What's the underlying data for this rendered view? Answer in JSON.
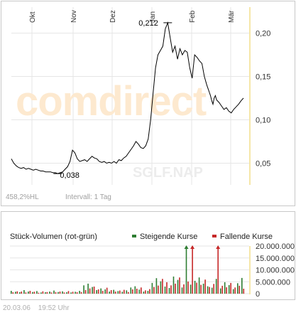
{
  "brand": "comdirect",
  "watermark": "SGLF.NAP",
  "price_info": {
    "range_label": "458,2%HL",
    "interval_label": "Intervall: 1 Tag"
  },
  "colors": {
    "price_line": "#000000",
    "grid": "#e6e6e6",
    "axis_accent": "#f5e6a8",
    "rising": "#2e7d32",
    "falling": "#c62828",
    "watermark_orange": "#fde9cf",
    "watermark_gray": "#ececec"
  },
  "chart_data": [
    {
      "type": "line",
      "x_ticks": [
        "Okt",
        "Nov",
        "Dez",
        "Jan",
        "Feb",
        "Mär"
      ],
      "y_ticks": [
        "0,05",
        "0,10",
        "0,15",
        "0,20"
      ],
      "ylim": [
        0.025,
        0.23
      ],
      "annotations": [
        {
          "label": "0,038",
          "value": 0.038
        },
        {
          "label": "0,212",
          "value": 0.212
        }
      ],
      "grid": true,
      "series": [
        {
          "x": [
            0,
            2,
            4,
            6,
            8,
            10,
            12,
            14,
            16,
            18,
            20,
            22,
            24,
            26,
            28,
            30,
            32,
            34,
            36,
            38,
            40,
            42,
            44,
            46,
            48,
            50,
            52,
            54,
            56,
            58,
            60,
            62,
            64,
            66,
            68,
            70,
            72,
            74,
            76,
            78,
            80,
            82,
            84,
            86,
            88,
            90,
            92,
            94,
            96,
            98,
            100,
            102,
            104,
            106,
            108,
            110,
            112,
            114,
            116,
            118,
            120,
            122,
            124,
            126,
            128,
            130,
            132,
            134,
            136,
            138,
            140,
            142,
            144,
            146,
            148,
            150,
            152,
            154,
            156,
            158,
            160,
            162,
            163,
            164,
            165,
            166,
            167,
            168,
            170,
            172,
            174,
            176,
            178,
            180,
            182,
            184,
            186,
            188,
            190
          ],
          "y": [
            0.055,
            0.05,
            0.047,
            0.045,
            0.044,
            0.045,
            0.043,
            0.044,
            0.043,
            0.042,
            0.043,
            0.042,
            0.041,
            0.041,
            0.04,
            0.04,
            0.04,
            0.039,
            0.039,
            0.038,
            0.039,
            0.04,
            0.043,
            0.046,
            0.052,
            0.065,
            0.062,
            0.055,
            0.052,
            0.053,
            0.054,
            0.052,
            0.055,
            0.058,
            0.056,
            0.055,
            0.052,
            0.051,
            0.052,
            0.05,
            0.051,
            0.05,
            0.052,
            0.05,
            0.054,
            0.053,
            0.056,
            0.058,
            0.062,
            0.066,
            0.07,
            0.075,
            0.072,
            0.068,
            0.067,
            0.07,
            0.078,
            0.1,
            0.13,
            0.16,
            0.175,
            0.18,
            0.185,
            0.205,
            0.212,
            0.195,
            0.178,
            0.185,
            0.17,
            0.182,
            0.175,
            0.18,
            0.178,
            0.16,
            0.148,
            0.175,
            0.172,
            0.168,
            0.165,
            0.15,
            0.14,
            0.132,
            0.128,
            0.122,
            0.118,
            0.125,
            0.128,
            0.123,
            0.12,
            0.116,
            0.112,
            0.114,
            0.11,
            0.108,
            0.112,
            0.115,
            0.118,
            0.122,
            0.125
          ]
        }
      ]
    },
    {
      "type": "bar",
      "title": "Stück-Volumen (rot-grün)",
      "y_ticks": [
        "0",
        "5.000.000",
        "10.000.000",
        "15.000.000",
        "20.000.000"
      ],
      "ylim": [
        0,
        20000000
      ],
      "legend": [
        {
          "label": "Steigende Kurse",
          "color": "#2e7d32"
        },
        {
          "label": "Fallende Kurse",
          "color": "#c62828"
        }
      ],
      "series": [
        {
          "name": "Steigende Kurse",
          "values": [
            1200000,
            800000,
            600000,
            1500000,
            900000,
            700000,
            1100000,
            500000,
            600000,
            900000,
            1300000,
            700000,
            1000000,
            600000,
            500000,
            800000,
            1200000,
            3500000,
            4200000,
            2800000,
            1500000,
            2200000,
            1800000,
            900000,
            1600000,
            1100000,
            800000,
            1400000,
            2600000,
            3100000,
            1700000,
            900000,
            1200000,
            4500000,
            6500000,
            5200000,
            3000000,
            2400000,
            7200000,
            5800000,
            2600000,
            20000000,
            3800000,
            5400000,
            6800000,
            4200000,
            3100000,
            2500000,
            6200000,
            2200000,
            4800000,
            3600000,
            1900000,
            4400000,
            6600000
          ]
        },
        {
          "name": "Fallende Kurse",
          "values": [
            600000,
            1000000,
            900000,
            500000,
            1200000,
            800000,
            400000,
            1000000,
            700000,
            500000,
            600000,
            900000,
            500000,
            1100000,
            800000,
            600000,
            700000,
            1500000,
            2200000,
            3000000,
            1800000,
            1200000,
            2500000,
            1500000,
            900000,
            1300000,
            1600000,
            700000,
            1800000,
            2100000,
            2600000,
            1400000,
            1900000,
            2800000,
            3400000,
            6200000,
            4800000,
            3500000,
            4200000,
            6800000,
            3900000,
            5100000,
            20000000,
            4600000,
            3700000,
            5900000,
            2800000,
            4100000,
            20000000,
            3300000,
            2700000,
            4500000,
            2600000,
            3300000,
            2100000
          ]
        }
      ]
    }
  ],
  "footer": {
    "date": "20.03.06",
    "time": "19:52 Uhr"
  }
}
